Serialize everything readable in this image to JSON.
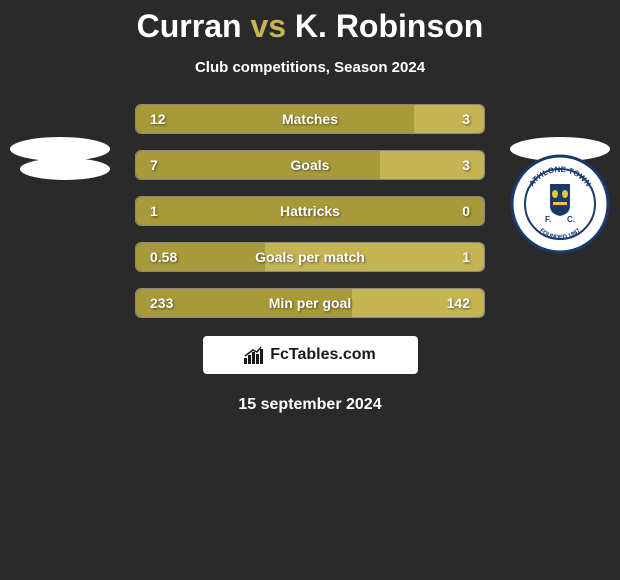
{
  "title": {
    "left": "Curran",
    "vs": "vs",
    "right": "K. Robinson"
  },
  "subtitle": "Club competitions, Season 2024",
  "colors": {
    "bar_left": "#a89a3a",
    "bar_right": "#c4b454",
    "background": "#2a2a2a",
    "text": "#ffffff",
    "title_vs": "#c4b454",
    "watermark_bg": "#ffffff"
  },
  "stats": [
    {
      "label": "Matches",
      "left_val": "12",
      "right_val": "3",
      "left_pct": 80,
      "right_pct": 20
    },
    {
      "label": "Goals",
      "left_val": "7",
      "right_val": "3",
      "left_pct": 70,
      "right_pct": 30
    },
    {
      "label": "Hattricks",
      "left_val": "1",
      "right_val": "0",
      "left_pct": 100,
      "right_pct": 0
    },
    {
      "label": "Goals per match",
      "left_val": "0.58",
      "right_val": "1",
      "left_pct": 37,
      "right_pct": 63
    },
    {
      "label": "Min per goal",
      "left_val": "233",
      "right_val": "142",
      "left_pct": 62,
      "right_pct": 38
    }
  ],
  "watermark": "FcTables.com",
  "date": "15 september 2024",
  "badge": {
    "top_text": "ATHLONE TOWN",
    "bottom_text": "FOUNDED 1887",
    "fc": "F.C."
  }
}
